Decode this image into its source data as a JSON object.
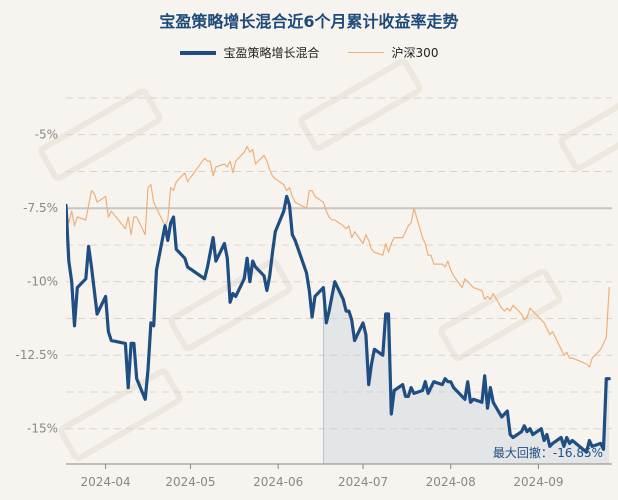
{
  "chart_data": {
    "type": "line",
    "title": "宝盈策略增长混合近6个月累计收益率走势",
    "xlabel": "",
    "ylabel": "",
    "xlim": [
      "2024-03-18",
      "2024-09-27"
    ],
    "ylim": [
      -16.2,
      -2.8
    ],
    "y_ticks": [
      -5,
      -7.5,
      -10,
      -12.5,
      -15
    ],
    "y_tick_labels": [
      "-5%",
      "-7.5%",
      "-10%",
      "-12.5%",
      "-15%"
    ],
    "x_ticks": [
      "2024-04-01",
      "2024-05-01",
      "2024-06-01",
      "2024-07-01",
      "2024-08-01",
      "2024-09-01"
    ],
    "x_tick_labels": [
      "2024-04",
      "2024-05",
      "2024-06",
      "2024-07",
      "2024-08",
      "2024-09"
    ],
    "grid": true,
    "legend_position": "top-center",
    "reference_line": -7.5,
    "annotation": "最大回撤：-16.85%",
    "drawdown_start": "2024-06-17",
    "series": [
      {
        "name": "宝盈策略增长混合",
        "color": "#1f4e82",
        "x": [
          "2024-03-18",
          "2024-03-19",
          "2024-03-20",
          "2024-03-21",
          "2024-03-22",
          "2024-03-25",
          "2024-03-26",
          "2024-03-27",
          "2024-03-28",
          "2024-03-29",
          "2024-04-01",
          "2024-04-02",
          "2024-04-03",
          "2024-04-08",
          "2024-04-09",
          "2024-04-10",
          "2024-04-11",
          "2024-04-12",
          "2024-04-15",
          "2024-04-16",
          "2024-04-17",
          "2024-04-18",
          "2024-04-19",
          "2024-04-22",
          "2024-04-23",
          "2024-04-24",
          "2024-04-25",
          "2024-04-26",
          "2024-04-29",
          "2024-04-30",
          "2024-05-06",
          "2024-05-07",
          "2024-05-08",
          "2024-05-09",
          "2024-05-10",
          "2024-05-13",
          "2024-05-14",
          "2024-05-15",
          "2024-05-16",
          "2024-05-17",
          "2024-05-20",
          "2024-05-21",
          "2024-05-22",
          "2024-05-23",
          "2024-05-24",
          "2024-05-27",
          "2024-05-28",
          "2024-05-29",
          "2024-05-30",
          "2024-05-31",
          "2024-06-03",
          "2024-06-04",
          "2024-06-05",
          "2024-06-06",
          "2024-06-07",
          "2024-06-11",
          "2024-06-12",
          "2024-06-13",
          "2024-06-14",
          "2024-06-17",
          "2024-06-18",
          "2024-06-19",
          "2024-06-20",
          "2024-06-21",
          "2024-06-24",
          "2024-06-25",
          "2024-06-26",
          "2024-06-27",
          "2024-06-28",
          "2024-07-01",
          "2024-07-02",
          "2024-07-03",
          "2024-07-04",
          "2024-07-05",
          "2024-07-08",
          "2024-07-09",
          "2024-07-10",
          "2024-07-11",
          "2024-07-12",
          "2024-07-15",
          "2024-07-16",
          "2024-07-17",
          "2024-07-18",
          "2024-07-19",
          "2024-07-22",
          "2024-07-23",
          "2024-07-24",
          "2024-07-25",
          "2024-07-26",
          "2024-07-29",
          "2024-07-30",
          "2024-07-31",
          "2024-08-01",
          "2024-08-02",
          "2024-08-05",
          "2024-08-06",
          "2024-08-07",
          "2024-08-08",
          "2024-08-09",
          "2024-08-12",
          "2024-08-13",
          "2024-08-14",
          "2024-08-15",
          "2024-08-16",
          "2024-08-19",
          "2024-08-20",
          "2024-08-21",
          "2024-08-22",
          "2024-08-23",
          "2024-08-26",
          "2024-08-27",
          "2024-08-28",
          "2024-08-29",
          "2024-08-30",
          "2024-09-02",
          "2024-09-03",
          "2024-09-04",
          "2024-09-05",
          "2024-09-06",
          "2024-09-09",
          "2024-09-10",
          "2024-09-11",
          "2024-09-12",
          "2024-09-13",
          "2024-09-18",
          "2024-09-19",
          "2024-09-20",
          "2024-09-23",
          "2024-09-24",
          "2024-09-25",
          "2024-09-26"
        ],
        "values": [
          -7.4,
          -9.3,
          -10.0,
          -11.5,
          -10.2,
          -9.9,
          -8.8,
          -9.5,
          -10.3,
          -11.1,
          -10.5,
          -11.7,
          -12.0,
          -12.1,
          -13.6,
          -12.1,
          -12.1,
          -13.3,
          -14.0,
          -13.0,
          -11.4,
          -11.5,
          -9.6,
          -8.1,
          -8.6,
          -8.0,
          -7.8,
          -8.9,
          -9.2,
          -9.5,
          -9.9,
          -9.5,
          -9.0,
          -8.5,
          -9.3,
          -8.7,
          -9.2,
          -10.7,
          -10.4,
          -10.5,
          -9.9,
          -9.2,
          -10.0,
          -9.3,
          -9.5,
          -9.8,
          -10.3,
          -9.8,
          -9.0,
          -8.3,
          -7.6,
          -7.1,
          -7.4,
          -8.4,
          -8.6,
          -9.7,
          -10.3,
          -11.2,
          -10.5,
          -10.2,
          -11.4,
          -11.0,
          -10.5,
          -10.0,
          -10.6,
          -11.0,
          -11.0,
          -11.3,
          -12.0,
          -11.4,
          -11.8,
          -13.5,
          -12.8,
          -12.3,
          -12.5,
          -11.1,
          -11.1,
          -14.5,
          -13.7,
          -13.5,
          -13.9,
          -13.9,
          -13.6,
          -13.8,
          -13.7,
          -13.4,
          -13.8,
          -13.6,
          -13.4,
          -13.5,
          -13.3,
          -13.4,
          -13.4,
          -13.6,
          -13.9,
          -14.0,
          -13.4,
          -14.1,
          -14.0,
          -14.1,
          -13.2,
          -14.3,
          -13.6,
          -14.1,
          -14.6,
          -14.5,
          -14.4,
          -15.2,
          -15.3,
          -15.1,
          -14.9,
          -15.1,
          -15.0,
          -15.2,
          -15.0,
          -15.4,
          -15.2,
          -15.6,
          -15.5,
          -15.3,
          -15.6,
          -15.3,
          -15.5,
          -15.4,
          -15.8,
          -15.4,
          -15.6,
          -15.5,
          -15.7,
          -13.3,
          -13.3
        ],
        "width": 3.2
      },
      {
        "name": "沪深300",
        "color": "#eeb078",
        "x": [
          "2024-03-18",
          "2024-03-19",
          "2024-03-20",
          "2024-03-21",
          "2024-03-22",
          "2024-03-25",
          "2024-03-26",
          "2024-03-27",
          "2024-03-28",
          "2024-03-29",
          "2024-04-01",
          "2024-04-02",
          "2024-04-03",
          "2024-04-08",
          "2024-04-09",
          "2024-04-10",
          "2024-04-11",
          "2024-04-12",
          "2024-04-15",
          "2024-04-16",
          "2024-04-17",
          "2024-04-18",
          "2024-04-19",
          "2024-04-22",
          "2024-04-23",
          "2024-04-24",
          "2024-04-25",
          "2024-04-26",
          "2024-04-29",
          "2024-04-30",
          "2024-05-06",
          "2024-05-07",
          "2024-05-08",
          "2024-05-09",
          "2024-05-10",
          "2024-05-13",
          "2024-05-14",
          "2024-05-15",
          "2024-05-16",
          "2024-05-17",
          "2024-05-20",
          "2024-05-21",
          "2024-05-22",
          "2024-05-23",
          "2024-05-24",
          "2024-05-27",
          "2024-05-28",
          "2024-05-29",
          "2024-05-30",
          "2024-05-31",
          "2024-06-03",
          "2024-06-04",
          "2024-06-05",
          "2024-06-06",
          "2024-06-07",
          "2024-06-11",
          "2024-06-12",
          "2024-06-13",
          "2024-06-14",
          "2024-06-17",
          "2024-06-18",
          "2024-06-19",
          "2024-06-20",
          "2024-06-21",
          "2024-06-24",
          "2024-06-25",
          "2024-06-26",
          "2024-06-27",
          "2024-06-28",
          "2024-07-01",
          "2024-07-02",
          "2024-07-03",
          "2024-07-04",
          "2024-07-05",
          "2024-07-08",
          "2024-07-09",
          "2024-07-10",
          "2024-07-11",
          "2024-07-12",
          "2024-07-15",
          "2024-07-16",
          "2024-07-17",
          "2024-07-18",
          "2024-07-19",
          "2024-07-22",
          "2024-07-23",
          "2024-07-24",
          "2024-07-25",
          "2024-07-26",
          "2024-07-29",
          "2024-07-30",
          "2024-07-31",
          "2024-08-01",
          "2024-08-02",
          "2024-08-05",
          "2024-08-06",
          "2024-08-07",
          "2024-08-08",
          "2024-08-09",
          "2024-08-12",
          "2024-08-13",
          "2024-08-14",
          "2024-08-15",
          "2024-08-16",
          "2024-08-19",
          "2024-08-20",
          "2024-08-21",
          "2024-08-22",
          "2024-08-23",
          "2024-08-26",
          "2024-08-27",
          "2024-08-28",
          "2024-08-29",
          "2024-08-30",
          "2024-09-02",
          "2024-09-03",
          "2024-09-04",
          "2024-09-05",
          "2024-09-06",
          "2024-09-09",
          "2024-09-10",
          "2024-09-11",
          "2024-09-12",
          "2024-09-13",
          "2024-09-18",
          "2024-09-19",
          "2024-09-20",
          "2024-09-23",
          "2024-09-24",
          "2024-09-25",
          "2024-09-26"
        ],
        "values": [
          -7.6,
          -8.0,
          -7.6,
          -8.1,
          -7.8,
          -7.9,
          -7.4,
          -6.9,
          -7.0,
          -7.3,
          -7.1,
          -7.8,
          -7.6,
          -8.2,
          -7.8,
          -8.4,
          -7.8,
          -7.8,
          -8.4,
          -6.8,
          -6.7,
          -7.3,
          -7.5,
          -8.1,
          -7.9,
          -6.8,
          -6.9,
          -6.6,
          -6.3,
          -6.6,
          -5.8,
          -5.9,
          -5.9,
          -6.4,
          -6.1,
          -6.0,
          -6.1,
          -5.9,
          -6.3,
          -5.9,
          -5.6,
          -5.4,
          -5.6,
          -5.5,
          -6.0,
          -5.7,
          -5.9,
          -6.2,
          -6.4,
          -6.5,
          -6.7,
          -6.9,
          -6.8,
          -7.1,
          -7.3,
          -7.5,
          -6.9,
          -6.9,
          -7.1,
          -7.3,
          -7.6,
          -7.8,
          -7.9,
          -7.9,
          -8.1,
          -8.2,
          -8.1,
          -8.5,
          -8.3,
          -8.7,
          -8.4,
          -8.6,
          -8.9,
          -9.0,
          -9.1,
          -8.7,
          -9.0,
          -8.7,
          -8.5,
          -8.5,
          -8.3,
          -8.1,
          -8.0,
          -7.5,
          -8.5,
          -8.7,
          -9.1,
          -9.1,
          -9.4,
          -9.4,
          -9.5,
          -9.3,
          -9.6,
          -9.8,
          -10.2,
          -9.9,
          -10.0,
          -10.1,
          -10.2,
          -10.3,
          -10.6,
          -10.5,
          -10.6,
          -10.4,
          -10.9,
          -11.0,
          -10.9,
          -11.0,
          -10.8,
          -11.1,
          -11.3,
          -11.2,
          -10.9,
          -11.0,
          -11.3,
          -11.4,
          -11.6,
          -11.8,
          -11.7,
          -12.3,
          -12.5,
          -12.4,
          -12.6,
          -12.6,
          -12.8,
          -12.9,
          -12.6,
          -12.3,
          -12.1,
          -11.9,
          -10.2
        ],
        "width": 1.2
      }
    ]
  }
}
